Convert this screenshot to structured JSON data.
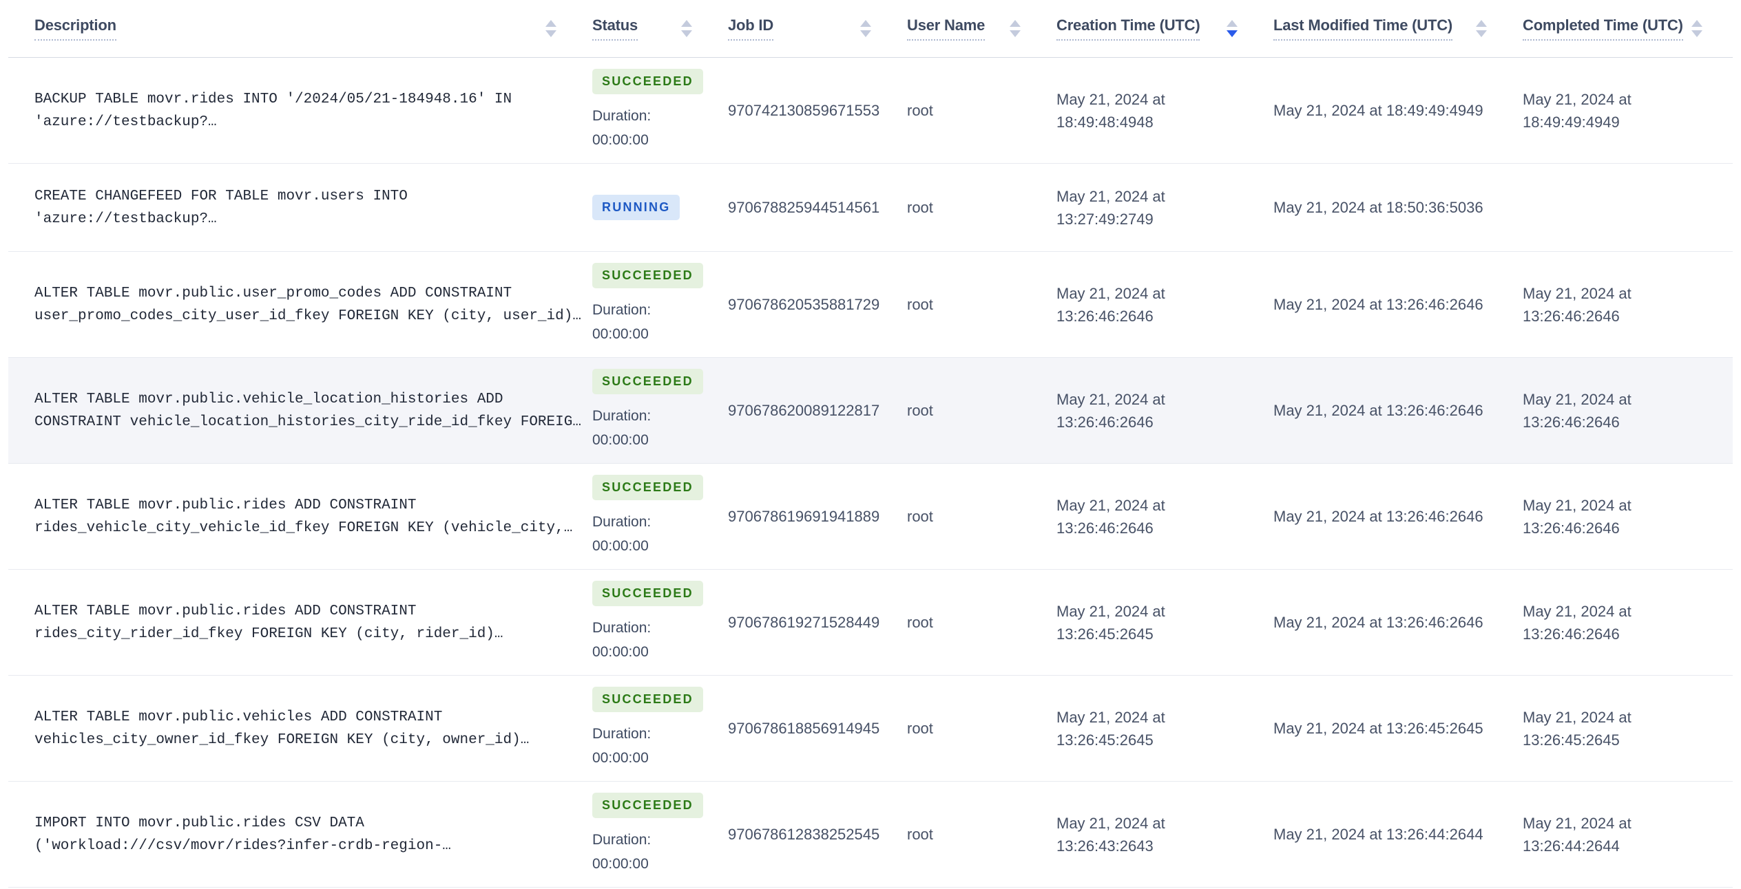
{
  "colors": {
    "c-sort-active": "#2A5BEA",
    "c-succeeded-bg": "#E5F1DF",
    "c-succeeded-text": "#2C7A17",
    "c-running-bg": "#D9E7F9",
    "c-running-text": "#1E59C4",
    "c-row-highlight": "#F4F5F9"
  },
  "table": {
    "labels": {
      "duration": "Duration:"
    },
    "columns": [
      {
        "label": "Description",
        "sort": "none"
      },
      {
        "label": "Status",
        "sort": "none"
      },
      {
        "label": "Job ID",
        "sort": "none"
      },
      {
        "label": "User Name",
        "sort": "none"
      },
      {
        "label": "Creation Time (UTC)",
        "sort": "desc"
      },
      {
        "label": "Last Modified Time (UTC)",
        "sort": "none"
      },
      {
        "label": "Completed Time (UTC)",
        "sort": "none"
      }
    ],
    "rows": [
      {
        "desc1": "BACKUP TABLE movr.rides INTO '/2024/05/21-184948.16' IN",
        "desc2": "'azure://testbackup?…",
        "status": "SUCCEEDED",
        "duration": "00:00:00",
        "job_id": "970742130859671553",
        "user": "root",
        "created": "May 21, 2024 at 18:49:48:4948",
        "modified": "May 21, 2024 at 18:49:49:4949",
        "completed": "May 21, 2024 at 18:49:49:4949",
        "highlighted": false
      },
      {
        "desc1": "CREATE CHANGEFEED FOR TABLE movr.users INTO",
        "desc2": "'azure://testbackup?…",
        "status": "RUNNING",
        "duration": null,
        "job_id": "970678825944514561",
        "user": "root",
        "created": "May 21, 2024 at 13:27:49:2749",
        "modified": "May 21, 2024 at 18:50:36:5036",
        "completed": "",
        "highlighted": false
      },
      {
        "desc1": "ALTER TABLE movr.public.user_promo_codes ADD CONSTRAINT",
        "desc2": "user_promo_codes_city_user_id_fkey FOREIGN KEY (city, user_id)…",
        "status": "SUCCEEDED",
        "duration": "00:00:00",
        "job_id": "970678620535881729",
        "user": "root",
        "created": "May 21, 2024 at 13:26:46:2646",
        "modified": "May 21, 2024 at 13:26:46:2646",
        "completed": "May 21, 2024 at 13:26:46:2646",
        "highlighted": false
      },
      {
        "desc1": "ALTER TABLE movr.public.vehicle_location_histories ADD",
        "desc2": "CONSTRAINT vehicle_location_histories_city_ride_id_fkey FOREIG…",
        "status": "SUCCEEDED",
        "duration": "00:00:00",
        "job_id": "970678620089122817",
        "user": "root",
        "created": "May 21, 2024 at 13:26:46:2646",
        "modified": "May 21, 2024 at 13:26:46:2646",
        "completed": "May 21, 2024 at 13:26:46:2646",
        "highlighted": true
      },
      {
        "desc1": "ALTER TABLE movr.public.rides ADD CONSTRAINT",
        "desc2": "rides_vehicle_city_vehicle_id_fkey FOREIGN KEY (vehicle_city,…",
        "status": "SUCCEEDED",
        "duration": "00:00:00",
        "job_id": "970678619691941889",
        "user": "root",
        "created": "May 21, 2024 at 13:26:46:2646",
        "modified": "May 21, 2024 at 13:26:46:2646",
        "completed": "May 21, 2024 at 13:26:46:2646",
        "highlighted": false
      },
      {
        "desc1": "ALTER TABLE movr.public.rides ADD CONSTRAINT",
        "desc2": "rides_city_rider_id_fkey FOREIGN KEY (city, rider_id)…",
        "status": "SUCCEEDED",
        "duration": "00:00:00",
        "job_id": "970678619271528449",
        "user": "root",
        "created": "May 21, 2024 at 13:26:45:2645",
        "modified": "May 21, 2024 at 13:26:46:2646",
        "completed": "May 21, 2024 at 13:26:46:2646",
        "highlighted": false
      },
      {
        "desc1": "ALTER TABLE movr.public.vehicles ADD CONSTRAINT",
        "desc2": "vehicles_city_owner_id_fkey FOREIGN KEY (city, owner_id)…",
        "status": "SUCCEEDED",
        "duration": "00:00:00",
        "job_id": "970678618856914945",
        "user": "root",
        "created": "May 21, 2024 at 13:26:45:2645",
        "modified": "May 21, 2024 at 13:26:45:2645",
        "completed": "May 21, 2024 at 13:26:45:2645",
        "highlighted": false
      },
      {
        "desc1": "IMPORT INTO movr.public.rides CSV DATA",
        "desc2": "('workload:///csv/movr/rides?infer-crdb-region-…",
        "status": "SUCCEEDED",
        "duration": "00:00:00",
        "job_id": "970678612838252545",
        "user": "root",
        "created": "May 21, 2024 at 13:26:43:2643",
        "modified": "May 21, 2024 at 13:26:44:2644",
        "completed": "May 21, 2024 at 13:26:44:2644",
        "highlighted": false
      }
    ]
  }
}
